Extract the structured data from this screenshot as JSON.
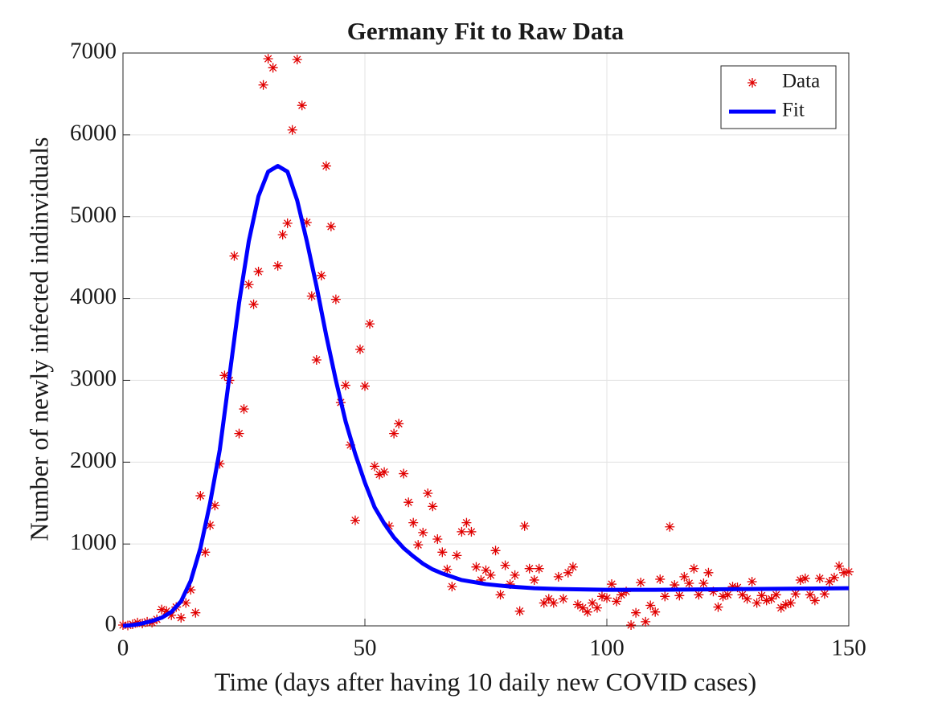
{
  "chart_data": {
    "type": "scatter",
    "title": "Germany Fit to Raw Data",
    "xlabel": "Time (days after having 10 daily new COVID cases)",
    "ylabel": "Number of newly infected indinviduals",
    "xlim": [
      0,
      150
    ],
    "xticks": [
      0,
      50,
      100,
      150
    ],
    "ylim": [
      0,
      7000
    ],
    "yticks": [
      0,
      1000,
      2000,
      3000,
      4000,
      5000,
      6000,
      7000
    ],
    "grid": true,
    "legend": "upper right",
    "series": [
      {
        "name": "Data",
        "style": "marker",
        "color": "#e00000",
        "x": [
          0,
          1,
          2,
          3,
          4,
          5,
          6,
          7,
          8,
          9,
          10,
          11,
          12,
          13,
          14,
          15,
          16,
          17,
          18,
          19,
          20,
          21,
          22,
          23,
          24,
          25,
          26,
          27,
          28,
          29,
          30,
          31,
          32,
          33,
          34,
          35,
          36,
          37,
          38,
          39,
          40,
          41,
          42,
          43,
          44,
          45,
          46,
          47,
          48,
          49,
          50,
          51,
          52,
          53,
          54,
          55,
          56,
          57,
          58,
          59,
          60,
          61,
          62,
          63,
          64,
          65,
          66,
          67,
          68,
          69,
          70,
          71,
          72,
          73,
          74,
          75,
          76,
          77,
          78,
          79,
          80,
          81,
          82,
          83,
          84,
          85,
          86,
          87,
          88,
          89,
          90,
          91,
          92,
          93,
          94,
          95,
          96,
          97,
          98,
          99,
          100,
          101,
          102,
          103,
          104,
          105,
          106,
          107,
          108,
          109,
          110,
          111,
          112,
          113,
          114,
          115,
          116,
          117,
          118,
          119,
          120,
          121,
          122,
          123,
          124,
          125,
          126,
          127,
          128,
          129,
          130,
          131,
          132,
          133,
          134,
          135,
          136,
          137,
          138,
          139,
          140,
          141,
          142,
          143,
          144,
          145,
          146,
          147,
          148,
          149,
          150
        ],
        "values": [
          10,
          5,
          20,
          40,
          30,
          50,
          40,
          80,
          200,
          180,
          130,
          230,
          100,
          280,
          440,
          160,
          1590,
          900,
          1230,
          1470,
          1980,
          3060,
          3000,
          4520,
          2350,
          2650,
          4170,
          3930,
          4330,
          6610,
          6930,
          6820,
          4400,
          4780,
          4920,
          6060,
          6920,
          6360,
          4930,
          4030,
          3250,
          4280,
          5620,
          4880,
          3990,
          2730,
          2940,
          2210,
          1290,
          3380,
          2930,
          3690,
          1950,
          1850,
          1880,
          1220,
          2350,
          2470,
          1860,
          1510,
          1260,
          990,
          1140,
          1620,
          1460,
          1060,
          900,
          690,
          480,
          860,
          1150,
          1260,
          1150,
          720,
          560,
          680,
          620,
          920,
          380,
          740,
          510,
          620,
          180,
          1220,
          700,
          560,
          700,
          280,
          330,
          280,
          600,
          330,
          650,
          720,
          260,
          220,
          170,
          280,
          220,
          360,
          340,
          510,
          300,
          380,
          420,
          10,
          160,
          530,
          50,
          250,
          170,
          570,
          360,
          1210,
          500,
          370,
          600,
          520,
          700,
          380,
          520,
          650,
          420,
          230,
          360,
          380,
          480,
          470,
          380,
          330,
          540,
          280,
          370,
          310,
          330,
          380,
          220,
          260,
          280,
          390,
          560,
          580,
          380,
          310,
          580,
          390,
          540,
          590,
          730,
          650,
          660
        ]
      },
      {
        "name": "Fit",
        "style": "line",
        "color": "#0000ff",
        "x": [
          0,
          2,
          4,
          6,
          8,
          10,
          12,
          14,
          16,
          18,
          20,
          22,
          24,
          26,
          28,
          30,
          32,
          34,
          36,
          38,
          40,
          42,
          44,
          46,
          48,
          50,
          52,
          54,
          56,
          58,
          60,
          62,
          64,
          66,
          68,
          70,
          75,
          80,
          85,
          90,
          100,
          110,
          120,
          130,
          140,
          150
        ],
        "values": [
          0,
          10,
          30,
          60,
          100,
          170,
          300,
          550,
          950,
          1500,
          2150,
          3050,
          3950,
          4700,
          5250,
          5550,
          5620,
          5550,
          5200,
          4700,
          4150,
          3550,
          3000,
          2500,
          2100,
          1750,
          1450,
          1250,
          1080,
          950,
          850,
          760,
          690,
          640,
          600,
          560,
          510,
          480,
          460,
          450,
          440,
          440,
          445,
          450,
          455,
          460
        ]
      }
    ]
  }
}
